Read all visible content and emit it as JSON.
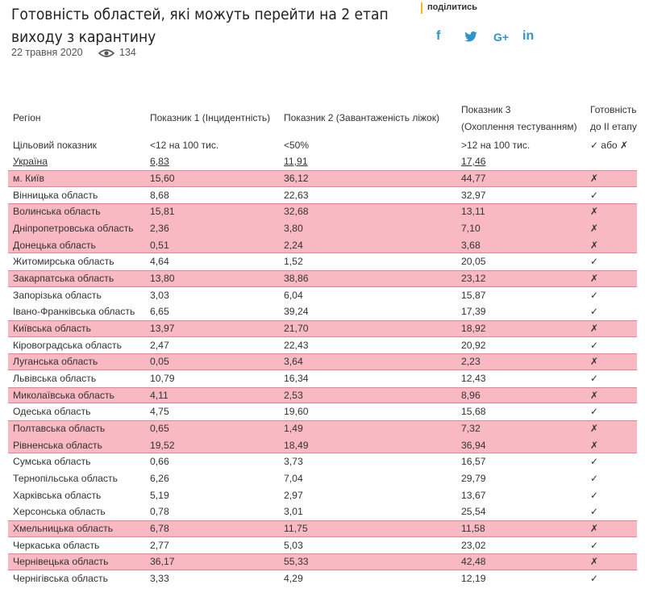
{
  "header": {
    "title": "Готовність областей, які можуть перейти на 2 етап виходу з карантину",
    "date": "22 травня 2020",
    "views": "134"
  },
  "share": {
    "label": "поділитись",
    "icons": [
      "f",
      "G+",
      "in"
    ]
  },
  "table": {
    "columns": [
      [
        "Регіон"
      ],
      [
        "Показник 1 (Інцидентність)"
      ],
      [
        "Показник 2 (Завантаженість ліжок)"
      ],
      [
        "Показник 3",
        "(Охоплення тестуванням)"
      ],
      [
        "Готовність",
        "до ІІ етапу"
      ]
    ],
    "target": [
      "Цільовий показник",
      "<12 на 100 тис.",
      "<50%",
      ">12 на 100 тис.",
      "✓ або ✗"
    ],
    "national": [
      "Україна",
      "6,83",
      "11,91",
      "17,46"
    ],
    "rows": [
      {
        "cells": [
          "м. Київ",
          "15,60",
          "36,12",
          "44,77",
          "✗"
        ],
        "highlight": true
      },
      {
        "cells": [
          "Вінницька область",
          "8,68",
          "22,63",
          "32,97",
          "✓"
        ],
        "highlight": false
      },
      {
        "cells": [
          "Волинська область",
          "15,81",
          "32,68",
          "13,11",
          "✗"
        ],
        "highlight": true
      },
      {
        "cells": [
          "Дніпропетровська область",
          "2,36",
          "3,80",
          "7,10",
          "✗"
        ],
        "highlight": true
      },
      {
        "cells": [
          "Донецька область",
          "0,51",
          "2,24",
          "3,68",
          "✗"
        ],
        "highlight": true
      },
      {
        "cells": [
          "Житомирська область",
          "4,64",
          "1,52",
          "20,05",
          "✓"
        ],
        "highlight": false
      },
      {
        "cells": [
          "Закарпатська область",
          "13,80",
          "38,86",
          "23,12",
          "✗"
        ],
        "highlight": true
      },
      {
        "cells": [
          "Запорізька область",
          "3,03",
          "6,04",
          "15,87",
          "✓"
        ],
        "highlight": false
      },
      {
        "cells": [
          "Івано-Франківська область",
          "6,65",
          "39,24",
          "17,39",
          "✓"
        ],
        "highlight": false
      },
      {
        "cells": [
          "Київська область",
          "13,97",
          "21,70",
          "18,92",
          "✗"
        ],
        "highlight": true
      },
      {
        "cells": [
          "Кіровоградська область",
          "2,47",
          "22,43",
          "20,92",
          "✓"
        ],
        "highlight": false
      },
      {
        "cells": [
          "Луганська область",
          "0,05",
          "3,64",
          "2,23",
          "✗"
        ],
        "highlight": true
      },
      {
        "cells": [
          "Львівська область",
          "10,79",
          "16,34",
          "12,43",
          "✓"
        ],
        "highlight": false
      },
      {
        "cells": [
          "Миколаївська область",
          "4,11",
          "2,53",
          "8,96",
          "✗"
        ],
        "highlight": true
      },
      {
        "cells": [
          "Одеська область",
          "4,75",
          "19,60",
          "15,68",
          "✓"
        ],
        "highlight": false
      },
      {
        "cells": [
          "Полтавська область",
          "0,65",
          "1,49",
          "7,32",
          "✗"
        ],
        "highlight": true
      },
      {
        "cells": [
          "Рівненська область",
          "19,52",
          "18,49",
          "36,94",
          "✗"
        ],
        "highlight": true
      },
      {
        "cells": [
          "Сумська область",
          "0,66",
          "3,73",
          "16,57",
          "✓"
        ],
        "highlight": false
      },
      {
        "cells": [
          "Тернопільська область",
          "6,26",
          "7,04",
          "29,79",
          "✓"
        ],
        "highlight": false
      },
      {
        "cells": [
          "Харківська область",
          "5,19",
          "2,97",
          "13,67",
          "✓"
        ],
        "highlight": false
      },
      {
        "cells": [
          "Херсонська область",
          "0,78",
          "3,01",
          "25,54",
          "✓"
        ],
        "highlight": false
      },
      {
        "cells": [
          "Хмельницька область",
          "6,78",
          "11,75",
          "11,58",
          "✗"
        ],
        "highlight": true
      },
      {
        "cells": [
          "Черкаська область",
          "2,77",
          "5,03",
          "23,02",
          "✓"
        ],
        "highlight": false
      },
      {
        "cells": [
          "Чернівецька область",
          "36,17",
          "55,33",
          "42,48",
          "✗"
        ],
        "highlight": true
      },
      {
        "cells": [
          "Чернігівська область",
          "3,33",
          "4,29",
          "12,19",
          "✓"
        ],
        "highlight": false
      }
    ]
  }
}
